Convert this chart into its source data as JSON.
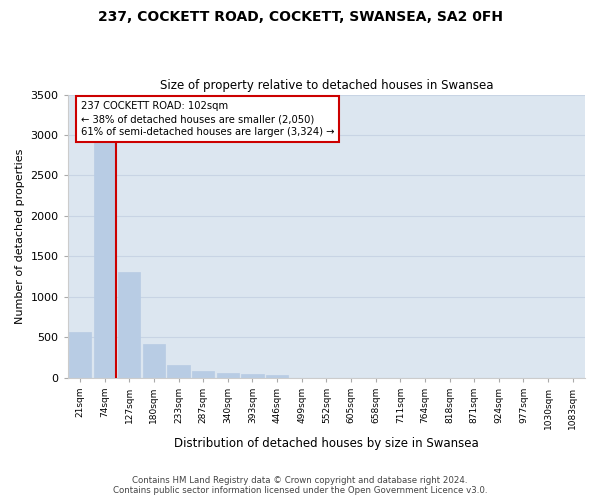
{
  "title": "237, COCKETT ROAD, COCKETT, SWANSEA, SA2 0FH",
  "subtitle": "Size of property relative to detached houses in Swansea",
  "xlabel": "Distribution of detached houses by size in Swansea",
  "ylabel": "Number of detached properties",
  "categories": [
    "21sqm",
    "74sqm",
    "127sqm",
    "180sqm",
    "233sqm",
    "287sqm",
    "340sqm",
    "393sqm",
    "446sqm",
    "499sqm",
    "552sqm",
    "605sqm",
    "658sqm",
    "711sqm",
    "764sqm",
    "818sqm",
    "871sqm",
    "924sqm",
    "977sqm",
    "1030sqm",
    "1083sqm"
  ],
  "values": [
    560,
    2920,
    1310,
    410,
    155,
    75,
    55,
    45,
    35,
    0,
    0,
    0,
    0,
    0,
    0,
    0,
    0,
    0,
    0,
    0,
    0
  ],
  "bar_color": "#b8cce4",
  "bar_edge_color": "#b8cce4",
  "grid_color": "#c8d4e4",
  "bg_color": "#dce6f0",
  "vline_color": "#cc0000",
  "annotation_text": "237 COCKETT ROAD: 102sqm\n← 38% of detached houses are smaller (2,050)\n61% of semi-detached houses are larger (3,324) →",
  "annotation_box_color": "#cc0000",
  "ylim": [
    0,
    3500
  ],
  "yticks": [
    0,
    500,
    1000,
    1500,
    2000,
    2500,
    3000,
    3500
  ],
  "footer_line1": "Contains HM Land Registry data © Crown copyright and database right 2024.",
  "footer_line2": "Contains public sector information licensed under the Open Government Licence v3.0."
}
